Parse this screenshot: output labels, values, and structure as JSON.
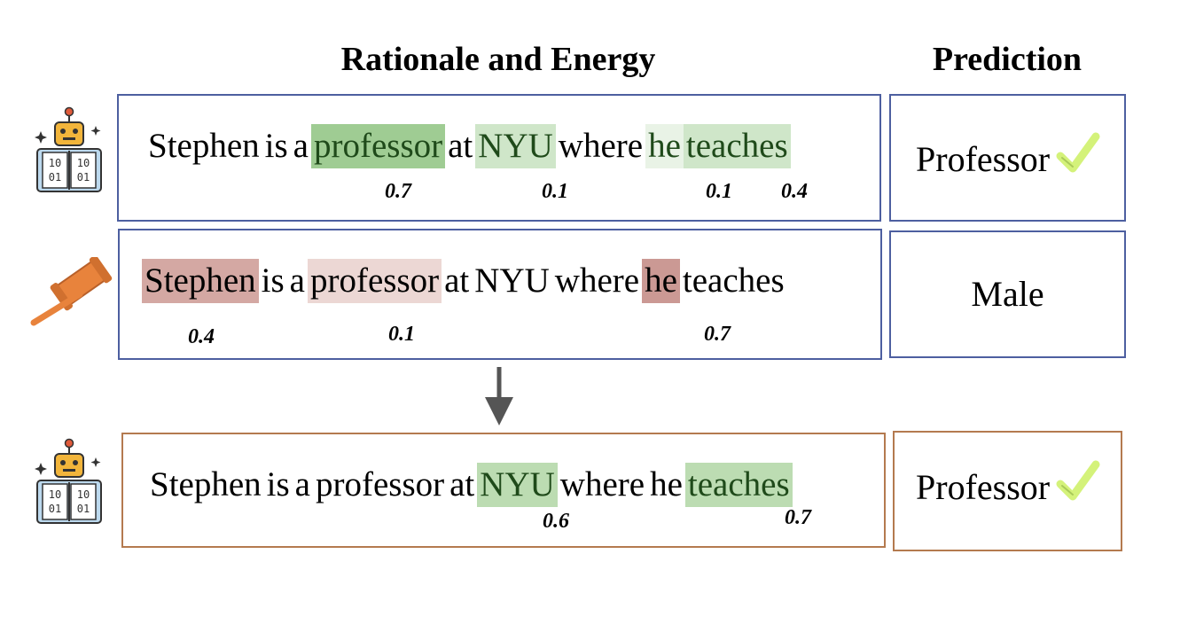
{
  "headings": {
    "rationale": "Rationale and Energy",
    "prediction": "Prediction"
  },
  "rows": [
    {
      "tokens": [
        "Stephen",
        "is",
        "a",
        "professor",
        "at",
        "NYU",
        "where",
        "he",
        "teaches"
      ],
      "scores": [
        "0.7",
        "0.1",
        "0.1",
        "0.4"
      ],
      "prediction": "Professor",
      "icon": "robot-book-icon",
      "box_color": "#4d5fa0",
      "highlight_colors": [
        "#9fcc93",
        "#cfe6c9",
        "#e9f3e6",
        "#cfe6c9"
      ]
    },
    {
      "tokens": [
        "Stephen",
        "is",
        "a",
        "professor",
        "at",
        "NYU",
        "where",
        "he",
        "teaches"
      ],
      "scores": [
        "0.4",
        "0.1",
        "0.7"
      ],
      "prediction": "Male",
      "icon": "gavel-icon",
      "box_color": "#4d5fa0",
      "highlight_colors": [
        "#d4a8a3",
        "#ecd7d4",
        "#cb9994"
      ]
    },
    {
      "tokens": [
        "Stephen",
        "is",
        "a",
        "professor",
        "at",
        "NYU",
        "where",
        "he",
        "teaches"
      ],
      "scores": [
        "0.6",
        "0.7"
      ],
      "prediction": "Professor",
      "icon": "robot-book-icon",
      "box_color": "#b47a4f",
      "highlight_colors": [
        "#bcdcb2",
        "#bcdcb2"
      ]
    }
  ],
  "arrow": "down-arrow-icon",
  "checkmark_color": "#d4f27a"
}
